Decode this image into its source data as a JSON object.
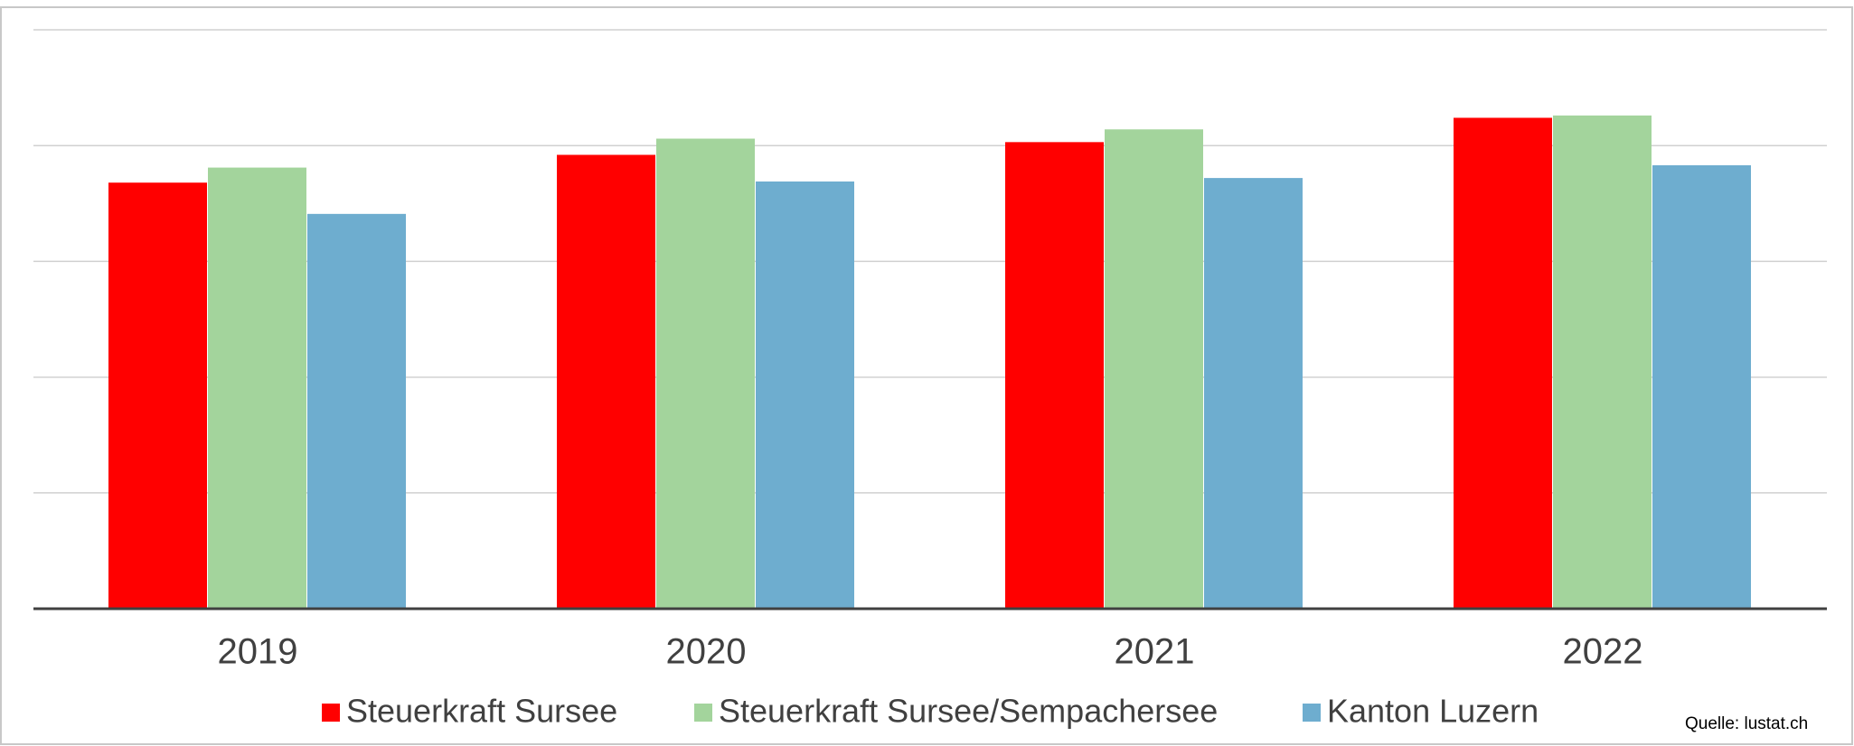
{
  "chart_data": {
    "type": "bar",
    "categories": [
      "2019",
      "2020",
      "2021",
      "2022"
    ],
    "series": [
      {
        "name": "Steuerkraft Sursee",
        "color": "#ff0000",
        "values": [
          3.68,
          3.92,
          4.03,
          4.24
        ]
      },
      {
        "name": "Steuerkraft Sursee/Sempachersee",
        "color": "#a3d49c",
        "values": [
          3.81,
          4.06,
          4.14,
          4.26
        ]
      },
      {
        "name": "Kanton Luzern",
        "color": "#6eadcf",
        "values": [
          3.41,
          3.69,
          3.72,
          3.83
        ]
      }
    ],
    "ylim": [
      0,
      5
    ],
    "yticks": [
      0,
      1,
      2,
      3,
      4,
      5
    ],
    "grid": true,
    "source": "Quelle: lustat.ch"
  }
}
